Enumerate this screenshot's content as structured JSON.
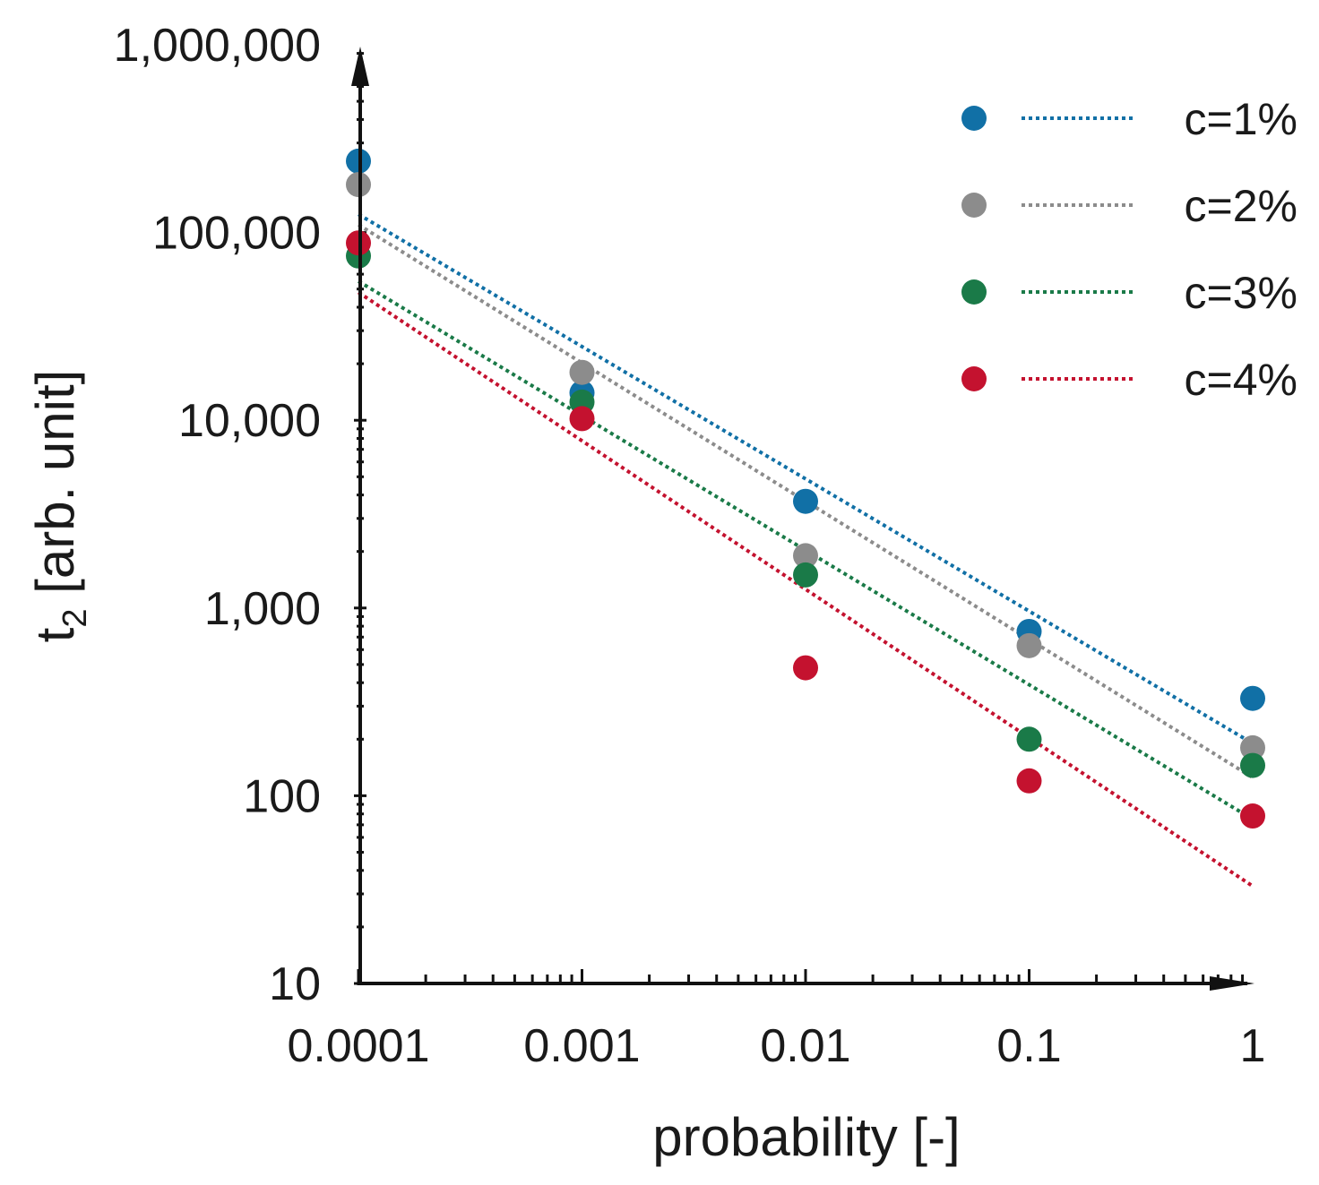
{
  "chart_data": {
    "type": "scatter",
    "xscale": "log",
    "yscale": "log",
    "xlim": [
      0.0001,
      1
    ],
    "ylim": [
      10,
      1000000
    ],
    "xlabel": "probability [-]",
    "ylabel": "t",
    "ylabel_subscript": "2",
    "ylabel_suffix": " [arb. unit]",
    "x_ticks": [
      {
        "value": 0.0001,
        "label": "0.0001"
      },
      {
        "value": 0.001,
        "label": "0.001"
      },
      {
        "value": 0.01,
        "label": "0.01"
      },
      {
        "value": 0.1,
        "label": "0.1"
      },
      {
        "value": 1,
        "label": "1"
      }
    ],
    "y_ticks": [
      {
        "value": 10,
        "label": "10"
      },
      {
        "value": 100,
        "label": "100"
      },
      {
        "value": 1000,
        "label": "1,000"
      },
      {
        "value": 10000,
        "label": "10,000"
      },
      {
        "value": 100000,
        "label": "100,000"
      },
      {
        "value": 1000000,
        "label": "1,000,000"
      }
    ],
    "legend_position": "top-right",
    "series": [
      {
        "name": "c=1%",
        "color": "#1170a6",
        "x": [
          0.0001,
          0.001,
          0.01,
          0.1,
          1
        ],
        "y": [
          240000,
          14000,
          3700,
          750,
          330
        ],
        "fit": {
          "x": [
            0.0001,
            1
          ],
          "y": [
            125000,
            190
          ]
        }
      },
      {
        "name": "c=2%",
        "color": "#8c8c8c",
        "x": [
          0.0001,
          0.001,
          0.01,
          0.1,
          1
        ],
        "y": [
          180000,
          18000,
          1900,
          630,
          180
        ],
        "fit": {
          "x": [
            0.0001,
            1
          ],
          "y": [
            110000,
            125
          ]
        }
      },
      {
        "name": "c=3%",
        "color": "#1a7a48",
        "x": [
          0.0001,
          0.001,
          0.01,
          0.1,
          1
        ],
        "y": [
          75000,
          12500,
          1500,
          200,
          145
        ],
        "fit": {
          "x": [
            0.0001,
            1
          ],
          "y": [
            55000,
            75
          ]
        }
      },
      {
        "name": "c=4%",
        "color": "#c4122f",
        "x": [
          0.0001,
          0.001,
          0.01,
          0.1,
          1
        ],
        "y": [
          88000,
          10200,
          480,
          120,
          78
        ],
        "fit": {
          "x": [
            0.0001,
            1
          ],
          "y": [
            48000,
            33
          ]
        }
      }
    ]
  }
}
